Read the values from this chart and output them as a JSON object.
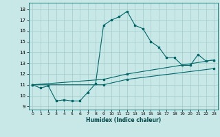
{
  "xlabel": "Humidex (Indice chaleur)",
  "bg_color": "#c8e8e8",
  "grid_color": "#a8d0d0",
  "line_color": "#006666",
  "xlim": [
    -0.5,
    23.5
  ],
  "ylim": [
    8.7,
    18.6
  ],
  "xticks": [
    0,
    1,
    2,
    3,
    4,
    5,
    6,
    7,
    8,
    9,
    10,
    11,
    12,
    13,
    14,
    15,
    16,
    17,
    18,
    19,
    20,
    21,
    22,
    23
  ],
  "yticks": [
    9,
    10,
    11,
    12,
    13,
    14,
    15,
    16,
    17,
    18
  ],
  "series1_x": [
    0,
    1,
    2,
    3,
    4,
    5,
    6,
    7,
    8,
    9,
    10,
    11,
    12,
    13,
    14,
    15,
    16,
    17,
    18,
    19,
    20,
    21,
    22,
    23
  ],
  "series1_y": [
    11.0,
    10.7,
    10.9,
    9.5,
    9.6,
    9.5,
    9.5,
    10.3,
    11.1,
    16.5,
    17.0,
    17.3,
    17.8,
    16.5,
    16.2,
    15.0,
    14.5,
    13.5,
    13.5,
    12.8,
    12.8,
    13.8,
    13.2,
    13.3
  ],
  "series2_x": [
    0,
    9,
    12,
    23
  ],
  "series2_y": [
    11.0,
    11.5,
    12.0,
    13.3
  ],
  "series3_x": [
    0,
    9,
    12,
    23
  ],
  "series3_y": [
    11.0,
    11.0,
    11.5,
    12.5
  ]
}
